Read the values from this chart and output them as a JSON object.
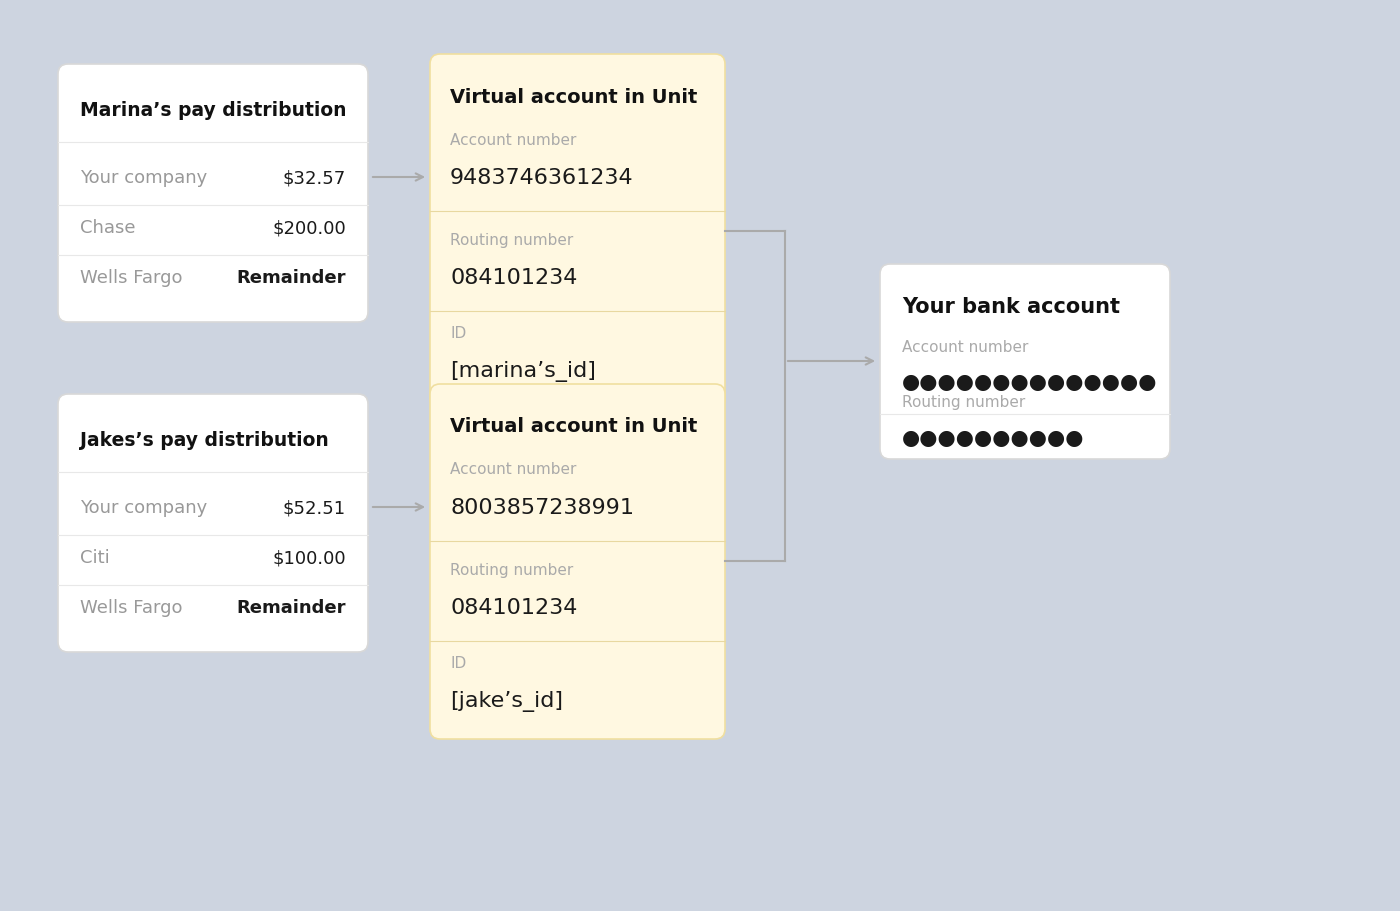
{
  "background_color": "#cdd4e0",
  "box_white_fill": "#ffffff",
  "box_yellow_fill": "#fff8e1",
  "box_white_edge": "#d8d8d8",
  "box_yellow_edge": "#f0dfa0",
  "arrow_color": "#aaaaaa",
  "marina_pay_title": "Marina’s pay distribution",
  "marina_rows": [
    [
      "Your company",
      "$32.57",
      false
    ],
    [
      "Chase",
      "$200.00",
      false
    ],
    [
      "Wells Fargo",
      "Remainder",
      true
    ]
  ],
  "jake_pay_title": "Jakes’s pay distribution",
  "jake_rows": [
    [
      "Your company",
      "$52.51",
      false
    ],
    [
      "Citi",
      "$100.00",
      false
    ],
    [
      "Wells Fargo",
      "Remainder",
      true
    ]
  ],
  "marina_unit_title": "Virtual account in Unit",
  "marina_unit_fields": [
    [
      "Account number",
      "9483746361234"
    ],
    [
      "Routing number",
      "084101234"
    ],
    [
      "ID",
      "[marina’s_id]"
    ]
  ],
  "jake_unit_title": "Virtual account in Unit",
  "jake_unit_fields": [
    [
      "Account number",
      "8003857238991"
    ],
    [
      "Routing number",
      "084101234"
    ],
    [
      "ID",
      "[jake’s_id]"
    ]
  ],
  "bank_title": "Your bank account",
  "bank_fields": [
    [
      "Account number",
      "●●●●●●●●●●●●●●"
    ],
    [
      "Routing number",
      "●●●●●●●●●●"
    ]
  ],
  "label_color": "#aaaaaa",
  "value_color": "#1a1a1a",
  "title_color": "#111111",
  "row_label_color": "#999999",
  "divider_color": "#e8e8e8",
  "yellow_divider": "#e8d8a0"
}
